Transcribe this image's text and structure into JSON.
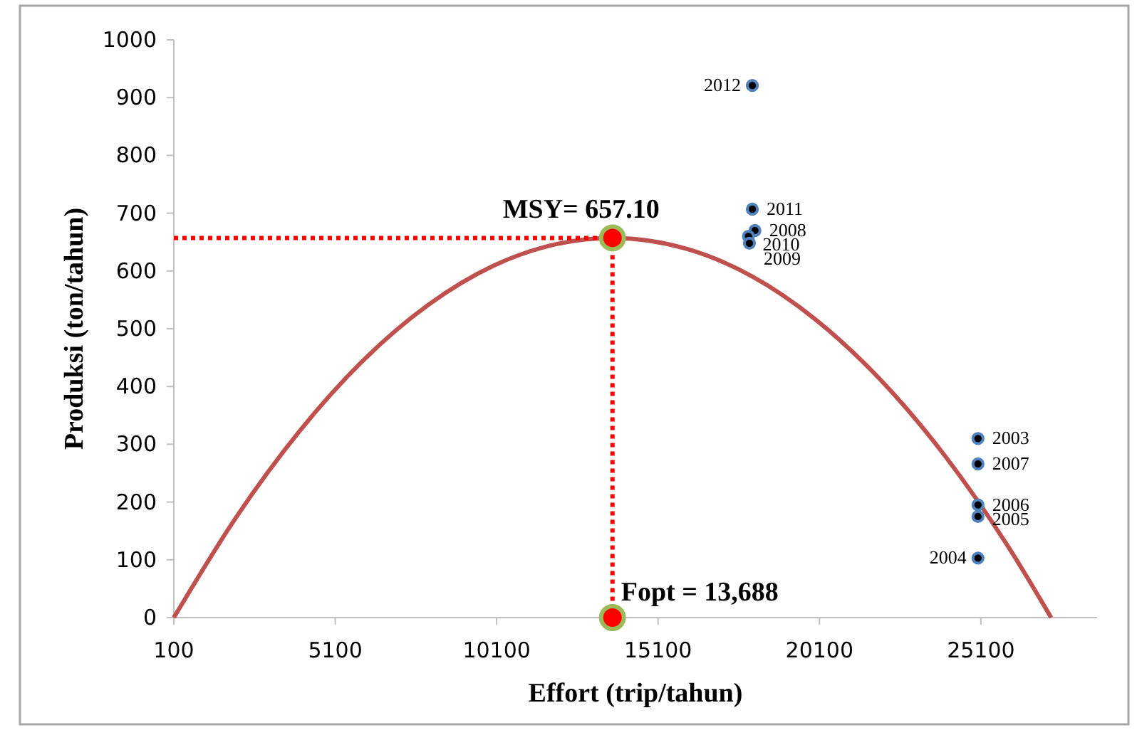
{
  "chart_data": {
    "type": "scatter",
    "xlabel": "Effort (trip/tahun)",
    "ylabel": "Produksi (ton/tahun)",
    "xlim": [
      100,
      28700
    ],
    "xticks": [
      100,
      5100,
      10100,
      15100,
      20100,
      25100
    ],
    "ylim": [
      0,
      1000
    ],
    "yticks": [
      0,
      100,
      200,
      300,
      400,
      500,
      600,
      700,
      800,
      900,
      1000
    ],
    "grid": false,
    "series": [
      {
        "type": "line",
        "color": "#c0504d",
        "line_style": "solid",
        "marker": "none",
        "x": [
          100,
          2000,
          4000,
          6000,
          8000,
          10000,
          12000,
          13688,
          16000,
          18000,
          20000,
          22000,
          24000,
          26000,
          27276
        ],
        "values": [
          0,
          171,
          323,
          447,
          542,
          609,
          647,
          657.1,
          638,
          591,
          515,
          411,
          279,
          118,
          0
        ]
      },
      {
        "type": "line",
        "color": "#ff0000",
        "line_style": "dotted",
        "marker": "none",
        "x": [
          100,
          13688
        ],
        "values": [
          657.1,
          657.1
        ]
      },
      {
        "type": "line",
        "color": "#ff0000",
        "line_style": "dotted",
        "marker": "none",
        "x": [
          13688,
          13688
        ],
        "values": [
          657.1,
          0
        ]
      },
      {
        "color": "#000000",
        "marker": "circle",
        "x": [
          18020,
          18020,
          18100,
          17900,
          17930,
          25010,
          25010,
          25010,
          25010,
          25010
        ],
        "values": [
          921,
          707,
          670,
          660,
          648,
          310,
          266,
          195,
          175,
          103
        ]
      },
      {
        "color": "#ff0000",
        "marker": "circle",
        "x": [
          13688,
          13688
        ],
        "values": [
          657.1,
          0
        ]
      }
    ],
    "annotations": [
      {
        "text": "2012",
        "x": 18020,
        "y": 921
      },
      {
        "text": "2011",
        "x": 18020,
        "y": 707
      },
      {
        "text": "2008",
        "x": 18100,
        "y": 670
      },
      {
        "text": "2010",
        "x": 17900,
        "y": 660
      },
      {
        "text": "2009",
        "x": 17930,
        "y": 648
      },
      {
        "text": "2003",
        "x": 25010,
        "y": 310
      },
      {
        "text": "2007",
        "x": 25010,
        "y": 266
      },
      {
        "text": "2006",
        "x": 25010,
        "y": 195
      },
      {
        "text": "2005",
        "x": 25010,
        "y": 175
      },
      {
        "text": "2004",
        "x": 25010,
        "y": 103
      },
      {
        "text": "MSY= 657.10",
        "x": 13688,
        "y": 657.1
      },
      {
        "text": "Fopt = 13,688",
        "x": 13688,
        "y": 0
      }
    ]
  }
}
